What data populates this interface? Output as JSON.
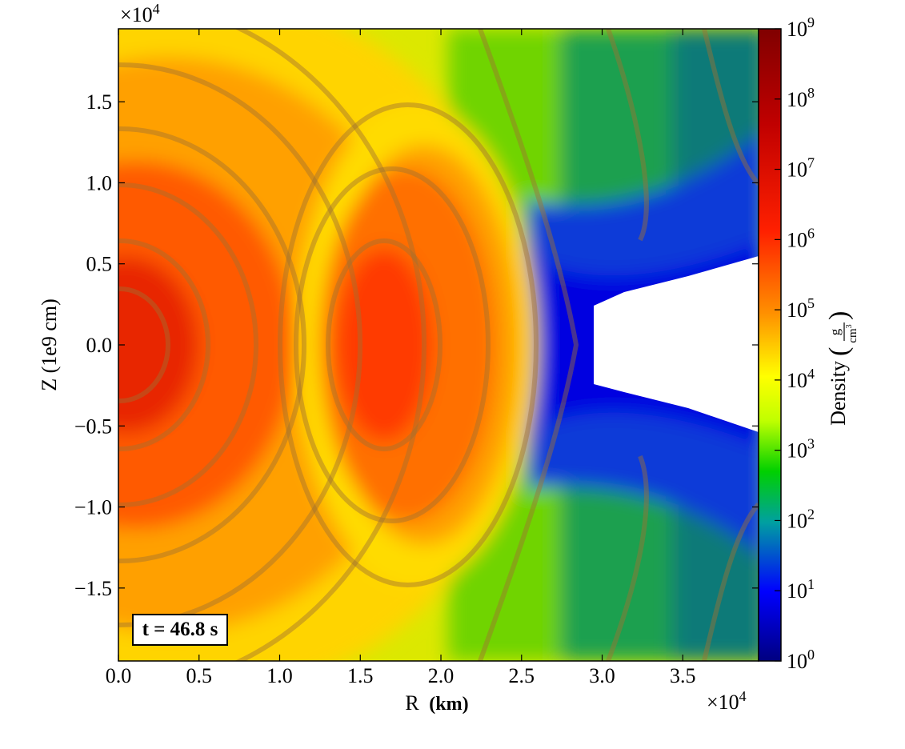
{
  "chart_data": {
    "type": "heatmap",
    "x_multiplier_label": "×10",
    "x_multiplier_exp": "4",
    "y_multiplier_label": "×10",
    "y_multiplier_exp": "4",
    "xlabel_main": "R",
    "xlabel_unit": "(km)",
    "ylabel": "Z (1e9 cm)",
    "xlim": [
      0.0,
      3.97
    ],
    "ylim": [
      -1.95,
      1.95
    ],
    "x_ticks": [
      0.0,
      0.5,
      1.0,
      1.5,
      2.0,
      2.5,
      3.0,
      3.5
    ],
    "x_tick_labels": [
      "0.0",
      "0.5",
      "1.0",
      "1.5",
      "2.0",
      "2.5",
      "3.0",
      "3.5"
    ],
    "y_ticks": [
      1.5,
      1.0,
      0.5,
      0.0,
      -0.5,
      -1.0,
      -1.5
    ],
    "y_tick_labels": [
      "1.5",
      "1.0",
      "0.5",
      "0.0",
      "−0.5",
      "−1.0",
      "−1.5"
    ],
    "colorbar": {
      "label": "Density",
      "unit_num": "g",
      "unit_den": "cm",
      "unit_den_exp": "3",
      "scale": "log",
      "range": [
        1,
        1000000000
      ],
      "tick_base": "10",
      "tick_exponents": [
        "0",
        "1",
        "2",
        "3",
        "4",
        "5",
        "6",
        "7",
        "8",
        "9"
      ],
      "colors": [
        "#000080",
        "#0000ff",
        "#00a0a0",
        "#00d000",
        "#c0ff00",
        "#ffff00",
        "#ff9000",
        "#ff2000",
        "#c00000",
        "#800000"
      ]
    },
    "annotation": "t = 46.8 s"
  }
}
